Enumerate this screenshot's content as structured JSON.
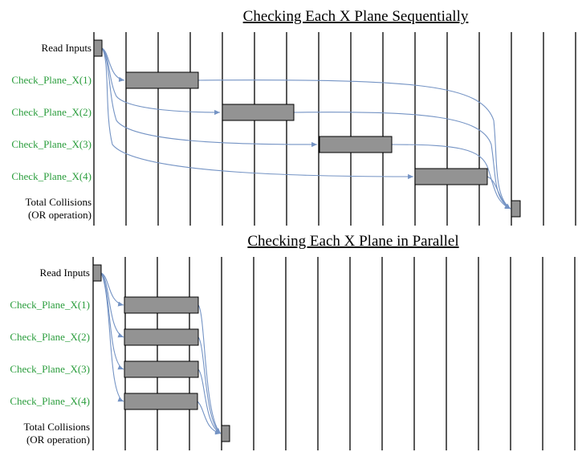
{
  "colors": {
    "grid": "#000000",
    "box_fill": "#939393",
    "arrow": "#7493c4",
    "green_label": "#2a9d3c"
  },
  "panels": [
    {
      "id": "sequential",
      "title": "Checking Each X Plane Sequentially",
      "rows": [
        {
          "label": "Read Inputs",
          "color": "black"
        },
        {
          "label": "Check_Plane_X(1)",
          "color": "green"
        },
        {
          "label": "Check_Plane_X(2)",
          "color": "green"
        },
        {
          "label": "Check_Plane_X(3)",
          "color": "green"
        },
        {
          "label": "Check_Plane_X(4)",
          "color": "green"
        },
        {
          "label": [
            "Total Collisions",
            "(OR operation)"
          ],
          "color": "black"
        }
      ]
    },
    {
      "id": "parallel",
      "title": "Checking Each X Plane in Parallel",
      "rows": [
        {
          "label": "Read Inputs",
          "color": "black"
        },
        {
          "label": "Check_Plane_X(1)",
          "color": "green"
        },
        {
          "label": "Check_Plane_X(2)",
          "color": "green"
        },
        {
          "label": "Check_Plane_X(3)",
          "color": "green"
        },
        {
          "label": "Check_Plane_X(4)",
          "color": "green"
        },
        {
          "label": [
            "Total Collisions",
            "(OR operation)"
          ],
          "color": "black"
        }
      ]
    }
  ]
}
